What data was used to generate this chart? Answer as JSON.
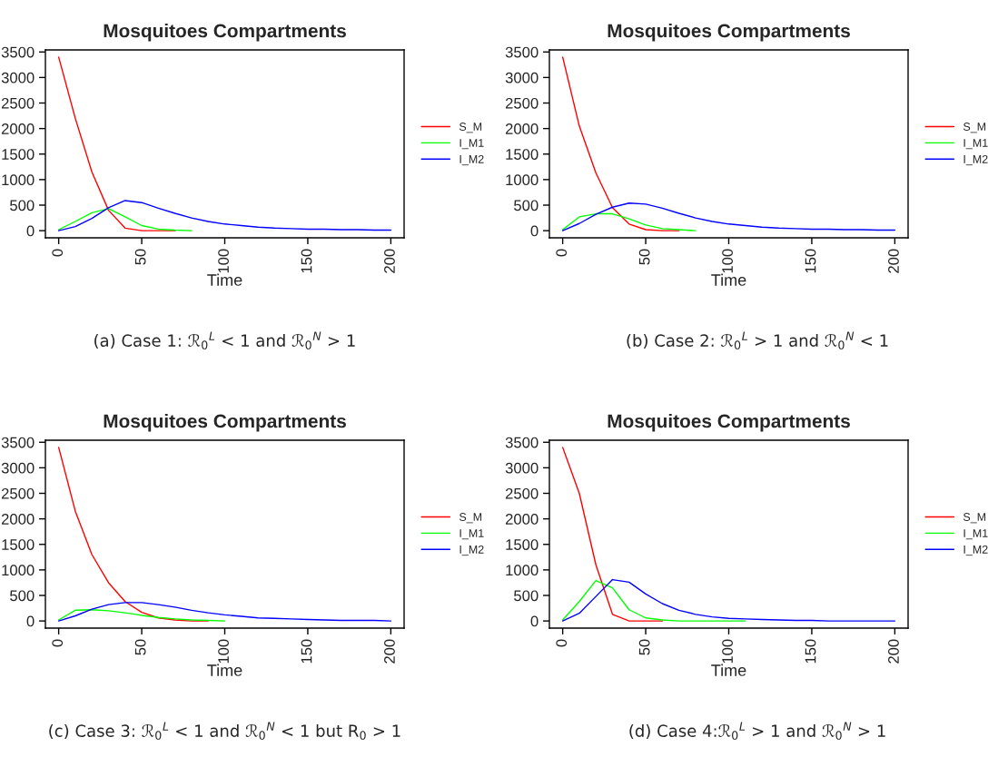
{
  "chart_data": [
    {
      "type": "line",
      "title": "Mosquitoes Compartments",
      "xlabel": "Time",
      "x": [
        0,
        10,
        20,
        30,
        40,
        50,
        60,
        70,
        80,
        90,
        100,
        110,
        120,
        130,
        140,
        150,
        160,
        170,
        180,
        190,
        200
      ],
      "xlim": [
        -8,
        208
      ],
      "ylim": [
        -140,
        3540
      ],
      "xticks": [
        0,
        50,
        100,
        150,
        200
      ],
      "yticks": [
        0,
        500,
        1000,
        1500,
        2000,
        2500,
        3000,
        3500
      ],
      "legend": "right",
      "annotations": [
        "(a) Case 1: ℛ$_{0}$$^{L}$ < 1 and ℛ$_{0}$$^{N}$ > 1"
      ],
      "series": [
        {
          "name": "S_M",
          "color": "#ff0000",
          "values": [
            3400,
            2200,
            1150,
            400,
            50,
            0,
            0,
            0,
            null,
            null,
            null,
            null,
            null,
            null,
            null,
            null,
            null,
            null,
            null,
            null,
            null
          ]
        },
        {
          "name": "I_M1",
          "color": "#00ff00",
          "values": [
            20,
            180,
            350,
            430,
            270,
            100,
            30,
            10,
            0,
            null,
            null,
            null,
            null,
            null,
            null,
            null,
            null,
            null,
            null,
            null,
            null
          ]
        },
        {
          "name": "I_M2",
          "color": "#0000ff",
          "values": [
            0,
            80,
            240,
            450,
            590,
            550,
            440,
            340,
            250,
            180,
            130,
            100,
            70,
            50,
            40,
            30,
            30,
            20,
            20,
            10,
            10
          ]
        }
      ]
    },
    {
      "type": "line",
      "title": "Mosquitoes Compartments",
      "xlabel": "Time",
      "x": [
        0,
        10,
        20,
        30,
        40,
        50,
        60,
        70,
        80,
        90,
        100,
        110,
        120,
        130,
        140,
        150,
        160,
        170,
        180,
        190,
        200
      ],
      "xlim": [
        -8,
        208
      ],
      "ylim": [
        -140,
        3540
      ],
      "xticks": [
        0,
        50,
        100,
        150,
        200
      ],
      "yticks": [
        0,
        500,
        1000,
        1500,
        2000,
        2500,
        3000,
        3500
      ],
      "legend": "right",
      "annotations": [
        "(b) Case 2: ℛ$_{0}$$^{L}$ > 1 and ℛ$_{0}$$^{N}$ < 1"
      ],
      "series": [
        {
          "name": "S_M",
          "color": "#ff0000",
          "values": [
            3400,
            2050,
            1130,
            450,
            130,
            20,
            0,
            0,
            null,
            null,
            null,
            null,
            null,
            null,
            null,
            null,
            null,
            null,
            null,
            null,
            null
          ]
        },
        {
          "name": "I_M1",
          "color": "#00ff00",
          "values": [
            20,
            270,
            330,
            330,
            230,
            110,
            40,
            20,
            0,
            null,
            null,
            null,
            null,
            null,
            null,
            null,
            null,
            null,
            null,
            null,
            null
          ]
        },
        {
          "name": "I_M2",
          "color": "#0000ff",
          "values": [
            0,
            140,
            320,
            460,
            540,
            520,
            440,
            340,
            250,
            180,
            130,
            100,
            70,
            50,
            40,
            30,
            30,
            20,
            20,
            10,
            10
          ]
        }
      ]
    },
    {
      "type": "line",
      "title": "Mosquitoes Compartments",
      "xlabel": "Time",
      "x": [
        0,
        10,
        20,
        30,
        40,
        50,
        60,
        70,
        80,
        90,
        100,
        110,
        120,
        130,
        140,
        150,
        160,
        170,
        180,
        190,
        200
      ],
      "xlim": [
        -8,
        208
      ],
      "ylim": [
        -140,
        3540
      ],
      "xticks": [
        0,
        50,
        100,
        150,
        200
      ],
      "yticks": [
        0,
        500,
        1000,
        1500,
        2000,
        2500,
        3000,
        3500
      ],
      "legend": "right",
      "annotations": [
        "(c) Case 3: ℛ$_{0}$$^{L}$ < 1 and ℛ$_{0}$$^{N}$ < 1 but R$_{0}$ > 1"
      ],
      "series": [
        {
          "name": "S_M",
          "color": "#ff0000",
          "values": [
            3400,
            2150,
            1300,
            750,
            380,
            170,
            60,
            20,
            0,
            0,
            null,
            null,
            null,
            null,
            null,
            null,
            null,
            null,
            null,
            null,
            null
          ]
        },
        {
          "name": "I_M1",
          "color": "#00ff00",
          "values": [
            20,
            210,
            220,
            200,
            160,
            110,
            70,
            40,
            20,
            10,
            0,
            null,
            null,
            null,
            null,
            null,
            null,
            null,
            null,
            null,
            null
          ]
        },
        {
          "name": "I_M2",
          "color": "#0000ff",
          "values": [
            0,
            100,
            230,
            320,
            360,
            360,
            320,
            270,
            210,
            160,
            120,
            90,
            60,
            50,
            40,
            30,
            20,
            10,
            10,
            10,
            0
          ]
        }
      ]
    },
    {
      "type": "line",
      "title": "Mosquitoes Compartments",
      "xlabel": "Time",
      "x": [
        0,
        10,
        20,
        30,
        40,
        50,
        60,
        70,
        80,
        90,
        100,
        110,
        120,
        130,
        140,
        150,
        160,
        170,
        180,
        190,
        200
      ],
      "xlim": [
        -8,
        208
      ],
      "ylim": [
        -140,
        3540
      ],
      "xticks": [
        0,
        50,
        100,
        150,
        200
      ],
      "yticks": [
        0,
        500,
        1000,
        1500,
        2000,
        2500,
        3000,
        3500
      ],
      "legend": "right",
      "annotations": [
        "(d) Case 4:ℛ$_{0}$$^{L}$ > 1 and ℛ$_{0}$$^{N}$ > 1"
      ],
      "series": [
        {
          "name": "S_M",
          "color": "#ff0000",
          "values": [
            3400,
            2500,
            1100,
            130,
            0,
            0,
            0,
            null,
            null,
            null,
            null,
            null,
            null,
            null,
            null,
            null,
            null,
            null,
            null,
            null,
            null
          ]
        },
        {
          "name": "I_M1",
          "color": "#00ff00",
          "values": [
            20,
            380,
            790,
            650,
            220,
            60,
            20,
            0,
            0,
            0,
            0,
            0,
            null,
            null,
            null,
            null,
            null,
            null,
            null,
            null,
            null
          ]
        },
        {
          "name": "I_M2",
          "color": "#0000ff",
          "values": [
            0,
            150,
            480,
            810,
            760,
            530,
            340,
            210,
            130,
            80,
            50,
            40,
            30,
            20,
            10,
            10,
            0,
            0,
            0,
            0,
            0
          ]
        }
      ]
    }
  ]
}
